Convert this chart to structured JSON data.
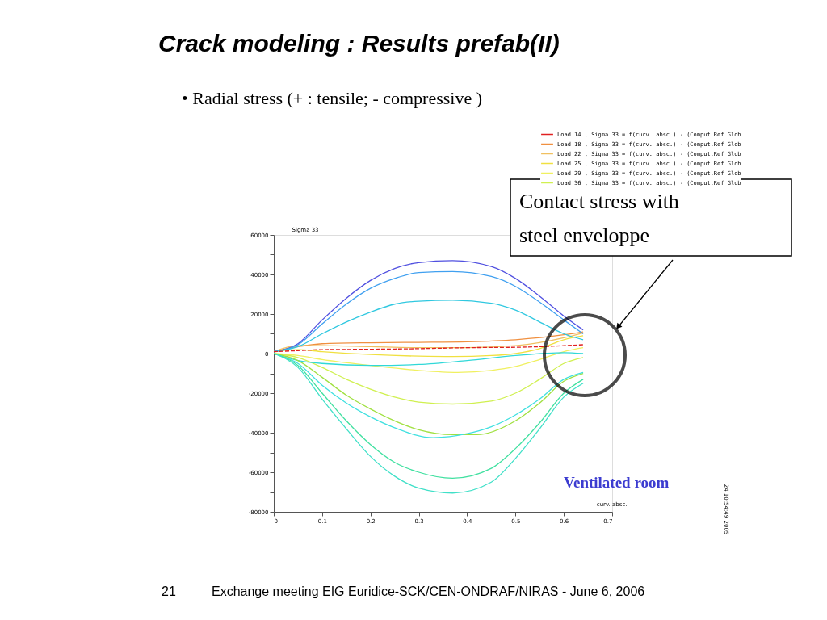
{
  "chart_data": {
    "type": "line",
    "title": "Crack modeling : Results prefab(II)",
    "subtitle": "• Radial stress (+ : tensile; - compressive )",
    "xlabel": "curv. absc.",
    "ylabel": "Sigma 33",
    "xlim": [
      0,
      0.7
    ],
    "xticks": [
      0,
      0.1,
      0.2,
      0.3,
      0.4,
      0.5,
      0.6,
      0.7
    ],
    "ylim": [
      -80000,
      60000
    ],
    "yticks": [
      -80000,
      {
        "value": -70000,
        "label": null
      },
      -60000,
      {
        "value": -50000,
        "label": null
      },
      -40000,
      {
        "value": -30000,
        "label": null
      },
      -20000,
      {
        "value": -10000,
        "label": null
      },
      0,
      {
        "value": 10000,
        "label": null
      },
      20000,
      {
        "value": 30000,
        "label": null
      },
      40000,
      {
        "value": 50000,
        "label": null
      },
      60000
    ],
    "grid": false,
    "legend": "top right",
    "marker": "none",
    "series": [
      {
        "name": "Load 14 , Sigma 33 = f(curv. absc.) - (Comput.Ref Glob",
        "color": "#e02020",
        "line_style": "dashed",
        "x": [
          0,
          0.05,
          0.1,
          0.2,
          0.3,
          0.4,
          0.5,
          0.6,
          0.64
        ],
        "values": [
          1000,
          1500,
          2000,
          2200,
          2500,
          3000,
          3200,
          4000,
          4500
        ]
      },
      {
        "name": "Load 18 , Sigma 33 = f(curv. absc.) - (Comput.Ref Glob",
        "color": "#f09040",
        "x": [
          0,
          0.05,
          0.1,
          0.2,
          0.3,
          0.4,
          0.5,
          0.6,
          0.64
        ],
        "values": [
          1000,
          3500,
          5000,
          5500,
          5700,
          6000,
          7000,
          9500,
          11000
        ]
      },
      {
        "name": "Load 22 , Sigma 33 = f(curv. absc.) - (Comput.Ref Glob",
        "color": "#f0c060",
        "x": [
          0,
          0.05,
          0.1,
          0.2,
          0.3,
          0.4,
          0.5,
          0.6,
          0.64
        ],
        "values": [
          1000,
          4000,
          4000,
          3500,
          3000,
          3000,
          4000,
          8000,
          10500
        ]
      },
      {
        "name": "Load 25 , Sigma 33 = f(curv. absc.) - (Comput.Ref Glob",
        "color": "#f0e040",
        "x": [
          0,
          0.05,
          0.1,
          0.2,
          0.3,
          0.37,
          0.45,
          0.5,
          0.55,
          0.6,
          0.64
        ],
        "values": [
          1000,
          2000,
          1000,
          -500,
          -1300,
          -1500,
          -1000,
          0,
          2500,
          7000,
          9000
        ]
      },
      {
        "name": "Load 29 , Sigma 33 = f(curv. absc.) - (Comput.Ref Glob",
        "color": "#f0f060",
        "x": [
          0,
          0.05,
          0.1,
          0.2,
          0.3,
          0.38,
          0.45,
          0.5,
          0.55,
          0.6,
          0.64
        ],
        "values": [
          0,
          -1000,
          -3000,
          -6000,
          -8500,
          -9500,
          -8500,
          -6500,
          -3000,
          1000,
          3000
        ]
      },
      {
        "name": "Load 36 , Sigma 33 = f(curv. absc.) - (Comput.Ref Glob",
        "color": "#d0f050",
        "x": [
          0,
          0.05,
          0.1,
          0.15,
          0.2,
          0.25,
          0.3,
          0.37,
          0.45,
          0.5,
          0.55,
          0.6,
          0.64
        ],
        "values": [
          0,
          -2000,
          -7000,
          -13000,
          -18000,
          -22000,
          -24500,
          -25500,
          -24000,
          -20000,
          -13000,
          -5000,
          -2000
        ]
      },
      {
        "color": "#5050e0",
        "x": [
          0,
          0.05,
          0.1,
          0.15,
          0.2,
          0.25,
          0.3,
          0.37,
          0.45,
          0.5,
          0.55,
          0.6,
          0.64
        ],
        "values": [
          1000,
          5000,
          17000,
          28000,
          37000,
          43000,
          46000,
          47000,
          44000,
          38000,
          29000,
          19000,
          12000
        ]
      },
      {
        "color": "#40a0f0",
        "x": [
          0,
          0.05,
          0.1,
          0.15,
          0.2,
          0.25,
          0.3,
          0.37,
          0.45,
          0.5,
          0.55,
          0.6,
          0.64
        ],
        "values": [
          1000,
          4500,
          15000,
          25000,
          33000,
          38000,
          41000,
          41500,
          39000,
          34000,
          26000,
          17000,
          10000
        ]
      },
      {
        "color": "#30c8e0",
        "x": [
          0,
          0.05,
          0.1,
          0.15,
          0.2,
          0.25,
          0.3,
          0.37,
          0.45,
          0.5,
          0.55,
          0.6,
          0.64
        ],
        "values": [
          1000,
          3500,
          10000,
          16000,
          21000,
          25000,
          26500,
          27000,
          25500,
          22000,
          16000,
          10000,
          7000
        ]
      },
      {
        "color": "#30d8d8",
        "x": [
          0,
          0.05,
          0.1,
          0.2,
          0.3,
          0.4,
          0.5,
          0.6,
          0.64
        ],
        "values": [
          0,
          -3500,
          -5000,
          -6000,
          -5500,
          -3500,
          -1000,
          500,
          0
        ]
      },
      {
        "color": "#a0e040",
        "x": [
          0,
          0.05,
          0.1,
          0.15,
          0.2,
          0.25,
          0.3,
          0.37,
          0.42,
          0.5,
          0.55,
          0.6,
          0.64
        ],
        "values": [
          0,
          -3500,
          -12000,
          -21000,
          -28000,
          -34000,
          -38500,
          -41000,
          -41000,
          -34000,
          -25000,
          -14000,
          -10000
        ]
      },
      {
        "color": "#40e0e0",
        "x": [
          0,
          0.05,
          0.1,
          0.15,
          0.2,
          0.25,
          0.33,
          0.4,
          0.45,
          0.5,
          0.55,
          0.6,
          0.64
        ],
        "values": [
          0,
          -5000,
          -16000,
          -25000,
          -32000,
          -37500,
          -42500,
          -40500,
          -37000,
          -31000,
          -23000,
          -13000,
          -9500
        ]
      },
      {
        "color": "#40e0a0",
        "x": [
          0,
          0.05,
          0.1,
          0.15,
          0.2,
          0.25,
          0.3,
          0.37,
          0.45,
          0.5,
          0.55,
          0.6,
          0.64
        ],
        "values": [
          0,
          -6000,
          -20000,
          -34000,
          -46000,
          -55000,
          -60000,
          -63000,
          -58000,
          -48000,
          -35000,
          -20000,
          -13000
        ]
      },
      {
        "color": "#40e0c8",
        "x": [
          0,
          0.05,
          0.1,
          0.15,
          0.2,
          0.25,
          0.3,
          0.37,
          0.45,
          0.5,
          0.55,
          0.6,
          0.64
        ],
        "values": [
          0,
          -7000,
          -23000,
          -38000,
          -52000,
          -62000,
          -68000,
          -70500,
          -65000,
          -53000,
          -38000,
          -22000,
          -15000
        ]
      }
    ],
    "annotations": [
      "Contact stress with\nsteel enveloppe",
      "Ventilated room",
      "21",
      "Exchange meeting EIG Euridice-SCK/CEN-ONDRAF/NIRAS  - June 6, 2006",
      "24 10:54:49 2005"
    ]
  }
}
